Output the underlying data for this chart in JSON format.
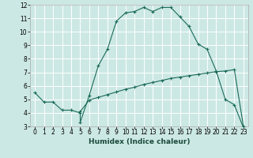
{
  "xlabel": "Humidex (Indice chaleur)",
  "bg_color": "#cce8e4",
  "grid_color": "#ffffff",
  "line_color": "#1a6b5a",
  "xlim": [
    -0.5,
    23.5
  ],
  "ylim": [
    3,
    12
  ],
  "xtick_labels": [
    "0",
    "1",
    "2",
    "3",
    "4",
    "5",
    "6",
    "7",
    "8",
    "9",
    "10",
    "11",
    "12",
    "13",
    "14",
    "15",
    "16",
    "17",
    "18",
    "19",
    "20",
    "21",
    "22",
    "23"
  ],
  "xtick_vals": [
    0,
    1,
    2,
    3,
    4,
    5,
    6,
    7,
    8,
    9,
    10,
    11,
    12,
    13,
    14,
    15,
    16,
    17,
    18,
    19,
    20,
    21,
    22,
    23
  ],
  "ytick_vals": [
    3,
    4,
    5,
    6,
    7,
    8,
    9,
    10,
    11,
    12
  ],
  "curve1_x": [
    0,
    1,
    2,
    3,
    4,
    5,
    5,
    6,
    7,
    8,
    9,
    10,
    11,
    12,
    13,
    14,
    15,
    16,
    17,
    18,
    19,
    20,
    21,
    22,
    23
  ],
  "curve1_y": [
    5.5,
    4.8,
    4.8,
    4.2,
    4.2,
    4.0,
    3.3,
    5.3,
    7.5,
    8.7,
    10.8,
    11.4,
    11.5,
    11.8,
    11.5,
    11.8,
    11.8,
    11.1,
    10.4,
    9.1,
    8.7,
    7.1,
    5.0,
    4.6,
    2.9
  ],
  "curve2_x": [
    5,
    6,
    7,
    8,
    9,
    10,
    11,
    12,
    13,
    14,
    15,
    16,
    17,
    18,
    19,
    20,
    21,
    22,
    23
  ],
  "curve2_y": [
    4.1,
    4.95,
    5.15,
    5.35,
    5.55,
    5.75,
    5.9,
    6.1,
    6.25,
    6.4,
    6.55,
    6.65,
    6.75,
    6.85,
    6.95,
    7.05,
    7.1,
    7.2,
    3.0
  ]
}
